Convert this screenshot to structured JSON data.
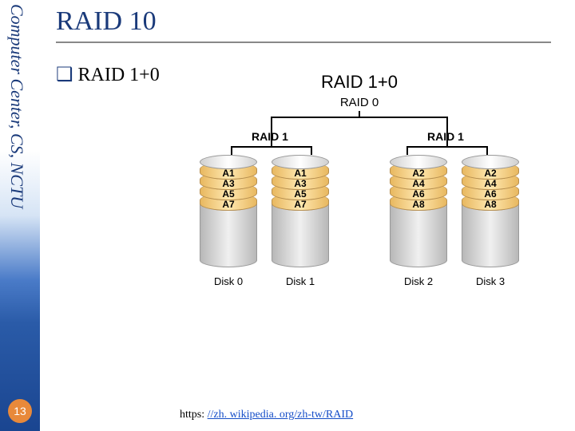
{
  "sidebar": {
    "text": "Computer Center, CS, NCTU",
    "page_number": "13"
  },
  "slide": {
    "title": "RAID 10",
    "bullet": "RAID 1+0"
  },
  "diagram": {
    "title": "RAID 1+0",
    "top_label": "RAID 0",
    "group_labels": [
      "RAID 1",
      "RAID 1"
    ],
    "disks": [
      {
        "label": "Disk 0",
        "blocks": [
          "A1",
          "A3",
          "A5",
          "A7"
        ]
      },
      {
        "label": "Disk 1",
        "blocks": [
          "A1",
          "A3",
          "A5",
          "A7"
        ]
      },
      {
        "label": "Disk 2",
        "blocks": [
          "A2",
          "A4",
          "A6",
          "A8"
        ]
      },
      {
        "label": "Disk 3",
        "blocks": [
          "A2",
          "A4",
          "A6",
          "A8"
        ]
      }
    ],
    "colors": {
      "block_fill_light": "#ffe8b0",
      "block_fill_dark": "#e8b860",
      "block_border": "#b89050",
      "gray_fill_light": "#f0f0f0",
      "gray_fill_dark": "#b8b8b8",
      "gray_border": "#999999",
      "bracket": "#000000"
    }
  },
  "link": {
    "prefix": "https: ",
    "text": "//zh. wikipedia. org/zh-tw/RAID"
  }
}
